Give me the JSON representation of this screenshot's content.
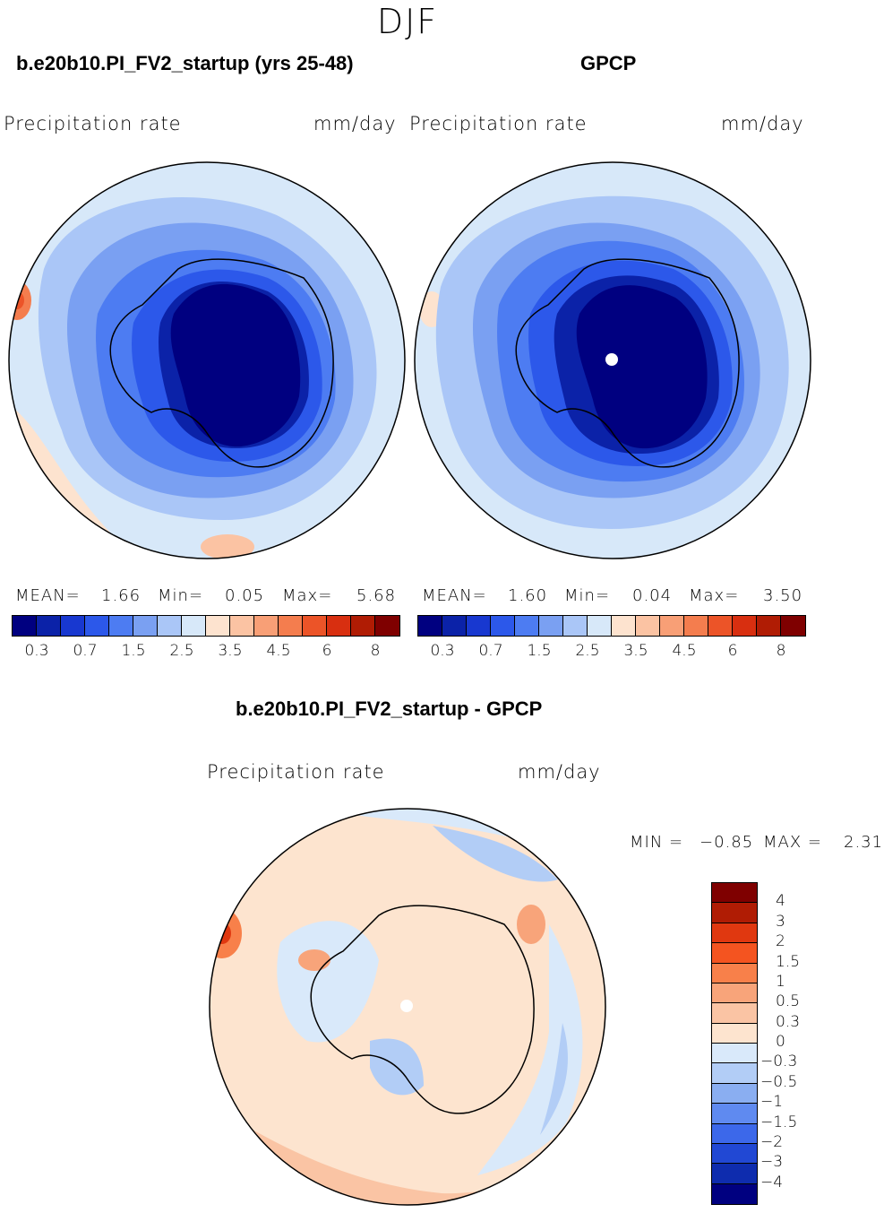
{
  "season": "DJF",
  "panels": {
    "model": {
      "title": "b.e20b10.PI_FV2_startup (yrs 25-48)",
      "variable": "Precipitation  rate",
      "units": "mm/day",
      "mean_label": "MEAN=",
      "mean": "1.66",
      "min_label": "Min=",
      "min": "0.05",
      "max_label": "Max=",
      "max": "5.68"
    },
    "obs": {
      "title": "GPCP",
      "variable": "Precipitation  rate",
      "units": "mm/day",
      "mean_label": "MEAN=",
      "mean": "1.60",
      "min_label": "Min=",
      "min": "0.04",
      "max_label": "Max=",
      "max": "3.50"
    },
    "diff": {
      "title": "b.e20b10.PI_FV2_startup - GPCP",
      "variable": "Precipitation  rate",
      "units": "mm/day",
      "min_label": "MIN =",
      "min": "−0.85",
      "max_label": "MAX =",
      "max": "2.31"
    }
  },
  "colorbar_abs": {
    "colors": [
      "#000080",
      "#0b22a8",
      "#1838d0",
      "#2c58ea",
      "#4d7cf2",
      "#7aa0f2",
      "#aac6f7",
      "#d7e8f9",
      "#fde3cf",
      "#fbc3a3",
      "#f89f76",
      "#f47d4e",
      "#ec5428",
      "#d82f10",
      "#b01c04",
      "#7f0000"
    ],
    "labels": [
      "0.3",
      "0.7",
      "1.5",
      "2.5",
      "3.5",
      "4.5",
      "6",
      "8"
    ]
  },
  "colorbar_diff": {
    "colors": [
      "#7f0000",
      "#b01c04",
      "#e03810",
      "#f45420",
      "#f8804a",
      "#f8a47a",
      "#fac4a4",
      "#fde4cf",
      "#d9e9fa",
      "#b2cdf6",
      "#8aaef1",
      "#5f8af0",
      "#3c68ea",
      "#2148d4",
      "#0e2cae",
      "#000080"
    ],
    "labels": [
      "4",
      "3",
      "2",
      "1.5",
      "1",
      "0.5",
      "0.3",
      "0",
      "−0.3",
      "−0.5",
      "−1",
      "−1.5",
      "−2",
      "−3",
      "−4"
    ]
  }
}
